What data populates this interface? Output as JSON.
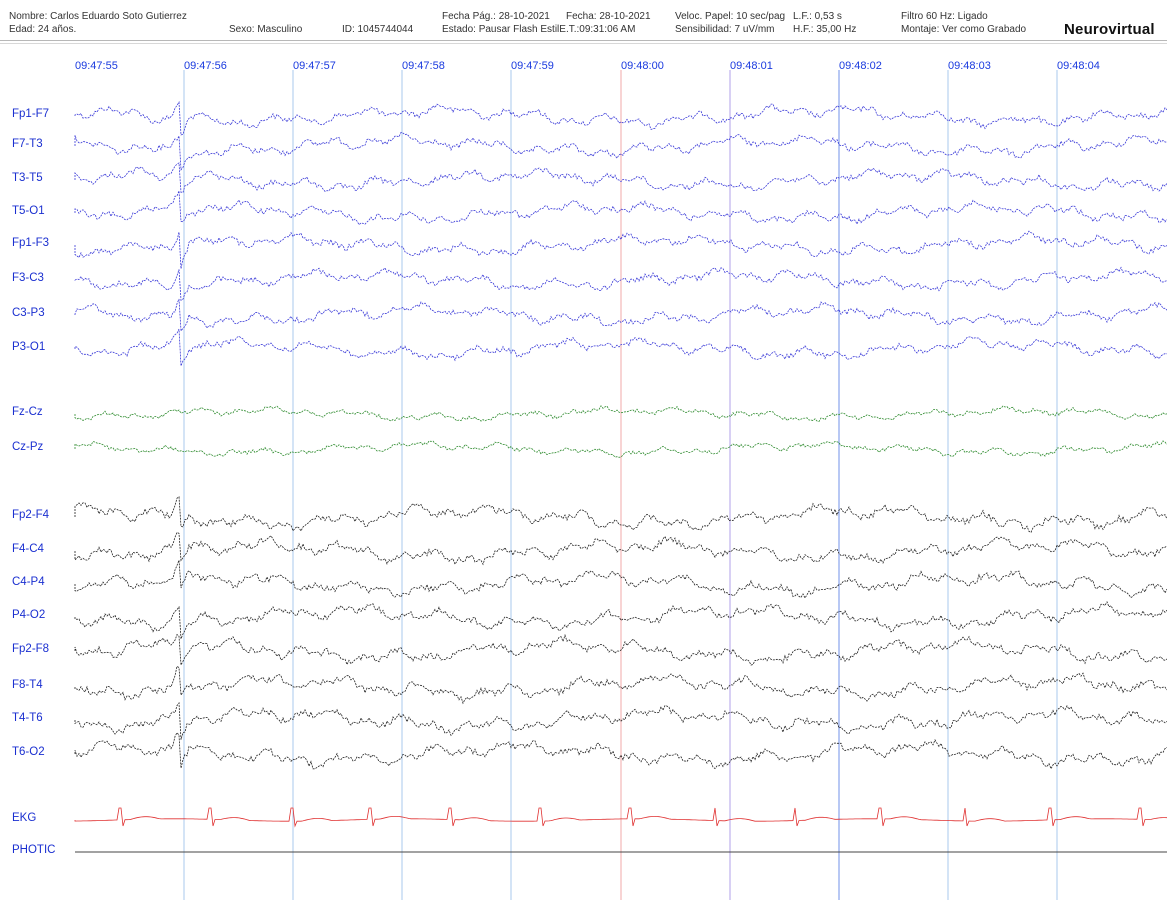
{
  "header": {
    "patient_name": "Nombre: Carlos Eduardo  Soto Gutierrez",
    "age": "Edad: 24 años.",
    "sex": "Sexo: Masculino",
    "id": "ID: 1045744044",
    "page_date": "Fecha Pág.: 28-10-2021",
    "date": "Fecha: 28-10-2021",
    "state": "Estado: Pausar Flash EstilE.T.:09:31:06 AM",
    "paper_speed": "Veloc. Papel: 10 sec/pag",
    "sensitivity": "Sensibilidad: 7 uV/mm",
    "lf": "L.F.: 0,53 s",
    "hf": "H.F.: 35,00 Hz",
    "filter": "Filtro 60 Hz: Ligado",
    "montage": "Montaje: Ver como Grabado",
    "brand": "Neurovirtual"
  },
  "colors": {
    "left_channels": "#3a3ad8",
    "central_channels": "#2e8b2e",
    "right_channels": "#222222",
    "ekg": "#e03030",
    "labels": "#1a2fd0",
    "time_ticks": "#1a3adf",
    "second_gridline": "#a9c9ee",
    "marker_red": "#f0a8a8",
    "marker_purple": "#b0a0e8",
    "marker_blue": "#7090e8"
  },
  "chart_data": {
    "type": "line",
    "time_ticks": [
      "09:47:55",
      "09:47:56",
      "09:47:57",
      "09:47:58",
      "09:47:59",
      "09:48:00",
      "09:48:01",
      "09:48:02",
      "09:48:03",
      "09:48:04"
    ],
    "channels": [
      {
        "name": "Fp1-F7",
        "group": "left"
      },
      {
        "name": "F7-T3",
        "group": "left"
      },
      {
        "name": "T3-T5",
        "group": "left"
      },
      {
        "name": "T5-O1",
        "group": "left"
      },
      {
        "name": "Fp1-F3",
        "group": "left"
      },
      {
        "name": "F3-C3",
        "group": "left"
      },
      {
        "name": "C3-P3",
        "group": "left"
      },
      {
        "name": "P3-O1",
        "group": "left"
      },
      {
        "name": "Fz-Cz",
        "group": "central"
      },
      {
        "name": "Cz-Pz",
        "group": "central"
      },
      {
        "name": "Fp2-F4",
        "group": "right"
      },
      {
        "name": "F4-C4",
        "group": "right"
      },
      {
        "name": "C4-P4",
        "group": "right"
      },
      {
        "name": "P4-O2",
        "group": "right"
      },
      {
        "name": "Fp2-F8",
        "group": "right"
      },
      {
        "name": "F8-T4",
        "group": "right"
      },
      {
        "name": "T4-T6",
        "group": "right"
      },
      {
        "name": "T6-O2",
        "group": "right"
      },
      {
        "name": "EKG",
        "group": "ekg"
      },
      {
        "name": "PHOTIC",
        "group": "photic"
      }
    ],
    "paper_speed_sec_per_page": 10,
    "sensitivity_uv_per_mm": 7,
    "grid": true
  }
}
